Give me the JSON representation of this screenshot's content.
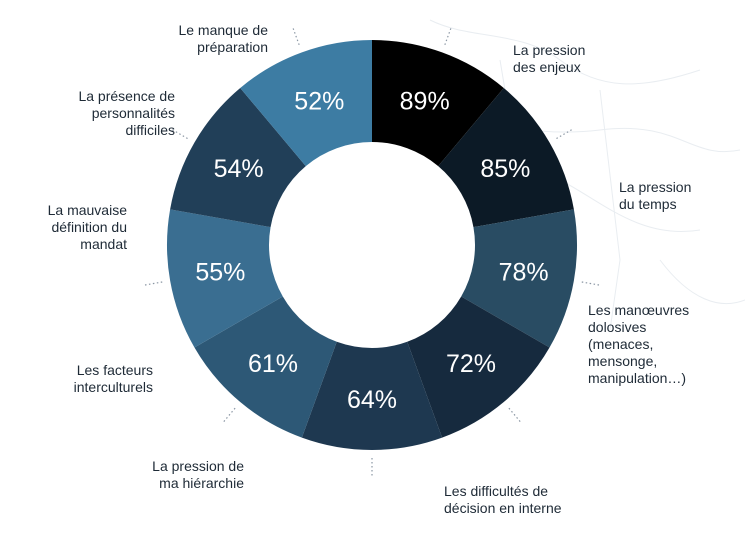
{
  "chart_data": {
    "type": "pie",
    "donut": true,
    "title": "",
    "value_labels": [
      "89%",
      "85%",
      "78%",
      "72%",
      "64%",
      "61%",
      "55%",
      "54%",
      "52%"
    ],
    "categories": [
      "La pression\ndes enjeux",
      "La pression\ndu temps",
      "Les manœuvres\ndolosives\n(menaces,\nmensonge,\nmanipulation…)",
      "Les difficultés de\ndécision en interne",
      "La pression de\nma hiérarchie",
      "Les facteurs\ninterculturels",
      "La mauvaise\ndéfinition du\nmandat",
      "La présence de\npersonnalités\ndifficiles",
      "Le manque de\npréparation"
    ],
    "values": [
      89,
      85,
      78,
      72,
      64,
      61,
      55,
      54,
      52
    ],
    "colors": [
      "#000000",
      "#0c1a26",
      "#294c63",
      "#162a3e",
      "#1e3850",
      "#2d5876",
      "#3a6e91",
      "#213f58",
      "#3d7ca3"
    ],
    "legend": "none",
    "grid": false
  }
}
